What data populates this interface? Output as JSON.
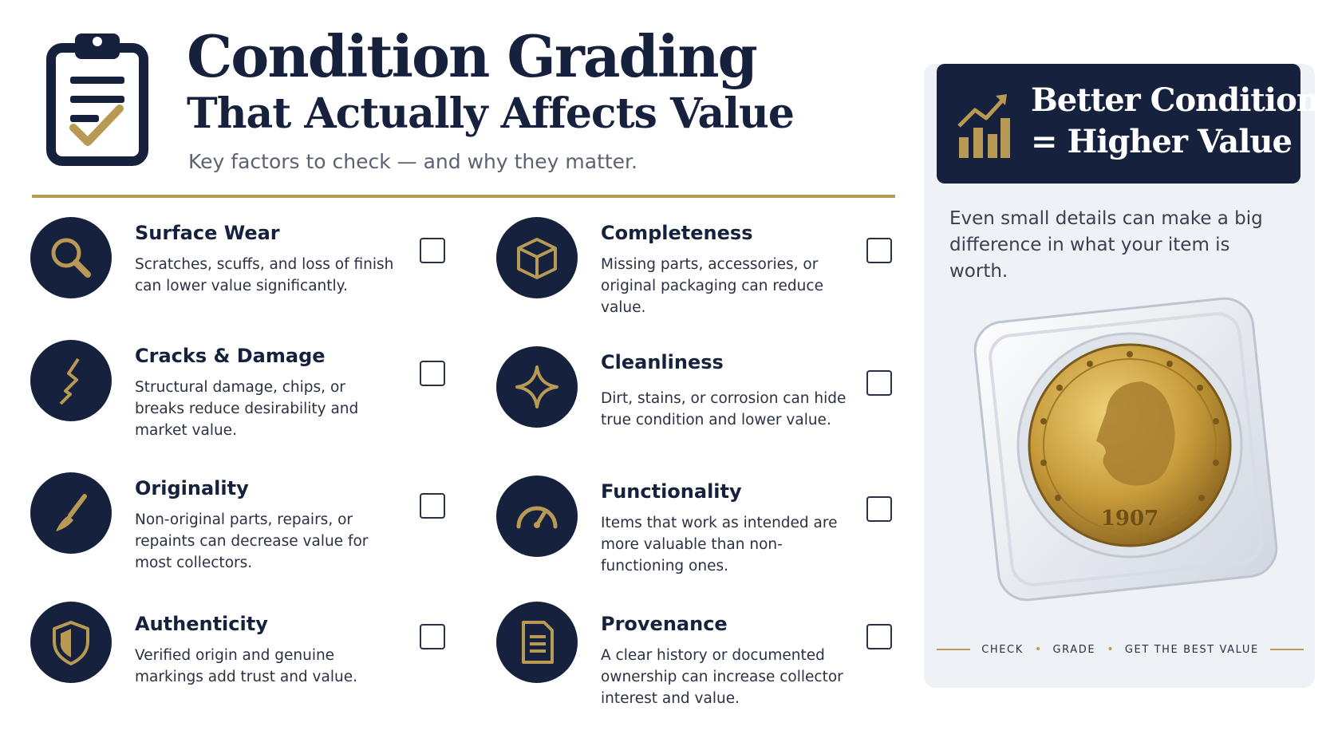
{
  "header": {
    "title": "Condition Grading",
    "subtitle_line": "That Actually Affects Value",
    "tagline": "Key factors to check — and why they matter.",
    "icon": "clipboard-check-icon"
  },
  "factors": [
    {
      "title": "Surface Wear",
      "desc": "Scratches, scuffs, and loss of finish can lower value significantly.",
      "icon": "magnifier-icon",
      "checked": false
    },
    {
      "title": "Completeness",
      "desc": "Missing parts, accessories, or original packaging can reduce value.",
      "icon": "box-icon",
      "checked": false
    },
    {
      "title": "Cracks & Damage",
      "desc": "Structural damage, chips, or breaks reduce desirability and market value.",
      "icon": "crack-icon",
      "checked": false
    },
    {
      "title": "Cleanliness",
      "desc": "Dirt, stains, or corrosion can hide true condition and lower value.",
      "icon": "sparkle-icon",
      "checked": false
    },
    {
      "title": "Originality",
      "desc": "Non-original parts, repairs, or repaints can decrease value for most collectors.",
      "icon": "paintbrush-icon",
      "checked": false
    },
    {
      "title": "Functionality",
      "desc": "Items that work as intended are more valuable than non-functioning ones.",
      "icon": "gauge-icon",
      "checked": false
    },
    {
      "title": "Authenticity",
      "desc": "Verified origin and genuine markings add trust and value.",
      "icon": "shield-icon",
      "checked": false
    },
    {
      "title": "Provenance",
      "desc": "A clear history or documented ownership can increase collector interest and value.",
      "icon": "document-icon",
      "checked": false
    }
  ],
  "panel": {
    "banner_line1": "Better Condition",
    "banner_line2": "= Higher Value",
    "banner_icon": "bar-chart-up-icon",
    "text": "Even small details can make a big difference in what your item is worth.",
    "coin_year": "1907",
    "footer_items": [
      "CHECK",
      "GRADE",
      "GET THE BEST VALUE"
    ]
  },
  "colors": {
    "navy": "#16213d",
    "gold": "#b89a55",
    "panel_bg": "#eef1f6"
  }
}
